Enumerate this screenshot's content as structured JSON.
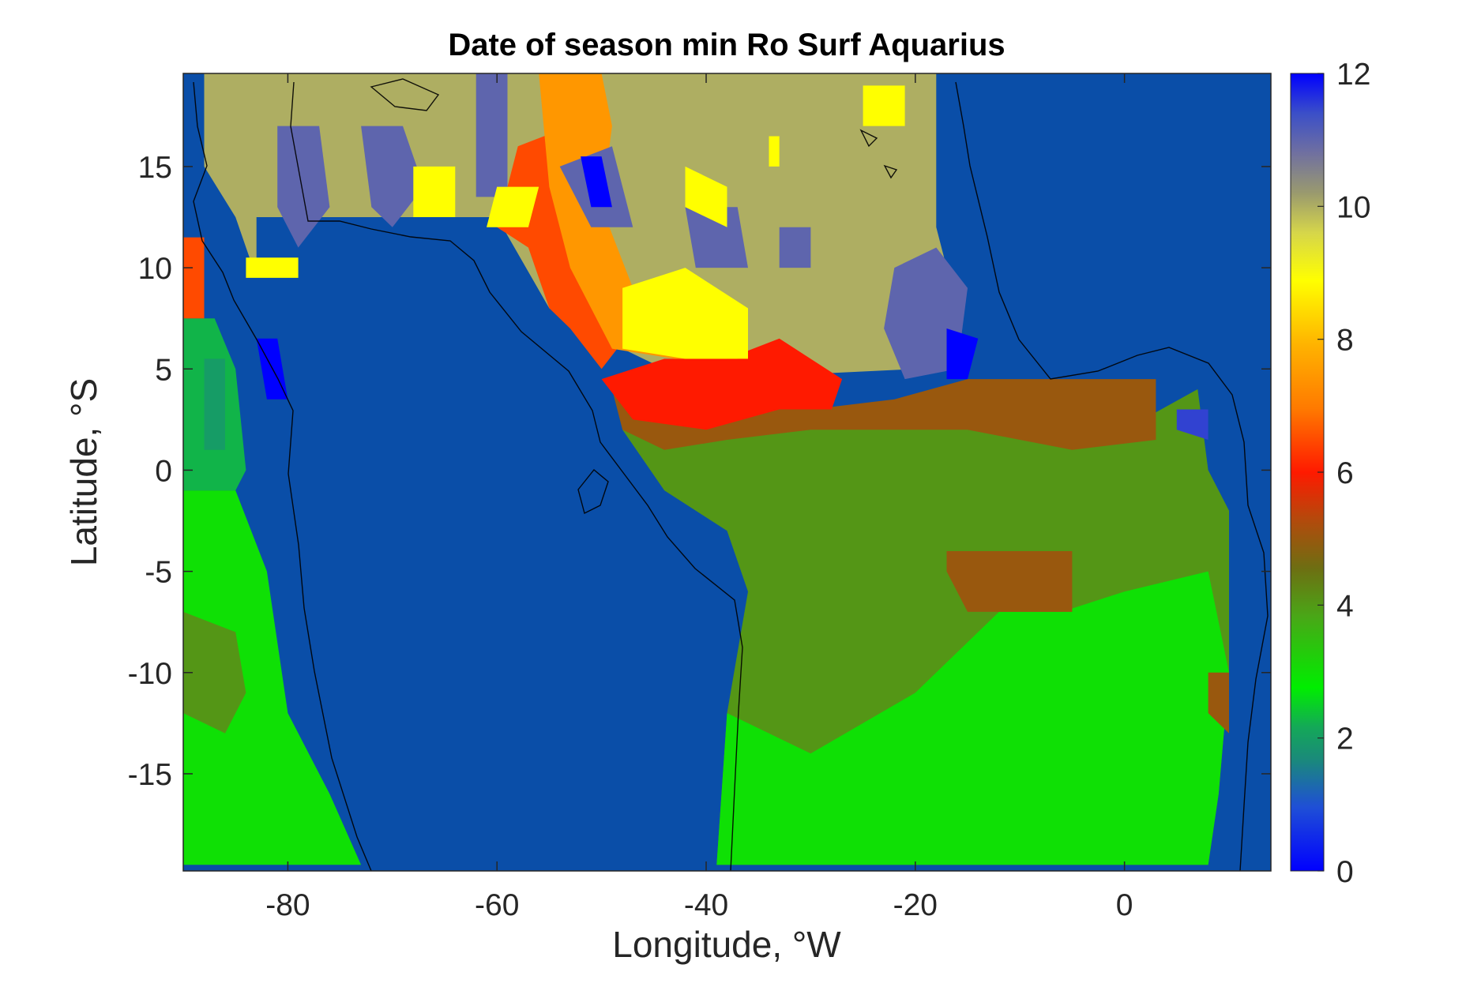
{
  "chart_data": {
    "type": "heatmap",
    "title": "Date of season min Ro Surf Aquarius",
    "xlabel": "Longitude, °W",
    "ylabel": "Latitude, °S",
    "xlim": [
      -90,
      14
    ],
    "ylim": [
      -19.8,
      19.6
    ],
    "xticks": [
      -80,
      -60,
      -40,
      -20,
      0
    ],
    "xtick_labels": [
      "-80",
      "-60",
      "-40",
      "-20",
      "0"
    ],
    "yticks": [
      -15,
      -10,
      -5,
      0,
      5,
      10,
      15
    ],
    "ytick_labels": [
      "-15",
      "-10",
      "-5",
      "0",
      "5",
      "10",
      "15"
    ],
    "colorbar": {
      "range": [
        0,
        12
      ],
      "ticks": [
        0,
        2,
        4,
        6,
        8,
        10,
        12
      ],
      "tick_labels": [
        "0",
        "2",
        "4",
        "6",
        "8",
        "10",
        "12"
      ],
      "colormap": "custom jet-like: blue(0) → teal → green → olive(4) → brown → red(6) → orange(8) → yellow(9) → khaki(10) → slate → blue(12)"
    },
    "background_value": 1,
    "regions": [
      {
        "name": "north-khaki",
        "value": 10,
        "polygon": [
          [
            -88,
            19.6
          ],
          [
            -18,
            19.6
          ],
          [
            -18,
            12
          ],
          [
            -16,
            8
          ],
          [
            -20,
            5
          ],
          [
            -28,
            4.8
          ],
          [
            -36,
            5
          ],
          [
            -44,
            5
          ],
          [
            -48,
            6
          ],
          [
            -55,
            8
          ],
          [
            -60,
            12.5
          ],
          [
            -74,
            12.5
          ],
          [
            -83,
            12.5
          ],
          [
            -83,
            9.5
          ],
          [
            -85,
            12.5
          ],
          [
            -88,
            15
          ]
        ]
      },
      {
        "name": "amazon-olive",
        "value": 4,
        "polygon": [
          [
            -48,
            3.5
          ],
          [
            -30,
            2.5
          ],
          [
            -15,
            2.5
          ],
          [
            0,
            2
          ],
          [
            7,
            4
          ],
          [
            8,
            0
          ],
          [
            10,
            -2
          ],
          [
            10,
            -10
          ],
          [
            9,
            -16
          ],
          [
            8,
            -19.5
          ],
          [
            -39,
            -19.5
          ],
          [
            -38,
            -12
          ],
          [
            -36,
            -6
          ],
          [
            -38,
            -3
          ],
          [
            -44,
            -1
          ],
          [
            -48,
            2
          ]
        ]
      },
      {
        "name": "se-bright-green",
        "value": 3,
        "polygon": [
          [
            -38,
            -12
          ],
          [
            -30,
            -14
          ],
          [
            -20,
            -11
          ],
          [
            -12,
            -7
          ],
          [
            -6,
            -7
          ],
          [
            0,
            -6
          ],
          [
            8,
            -5
          ],
          [
            10,
            -10
          ],
          [
            9,
            -16
          ],
          [
            8,
            -19.5
          ],
          [
            -39,
            -19.5
          ]
        ]
      },
      {
        "name": "sw-bright-green",
        "value": 3,
        "polygon": [
          [
            -90,
            -1
          ],
          [
            -85,
            -1
          ],
          [
            -82,
            -5
          ],
          [
            -80,
            -12
          ],
          [
            -76,
            -16
          ],
          [
            -73,
            -19.5
          ],
          [
            -90,
            -19.5
          ]
        ]
      },
      {
        "name": "w-green-strip",
        "value": 2.3,
        "polygon": [
          [
            -90,
            7.5
          ],
          [
            -87,
            7.5
          ],
          [
            -85,
            5
          ],
          [
            -84,
            0
          ],
          [
            -85,
            -1
          ],
          [
            -90,
            -1
          ]
        ]
      },
      {
        "name": "sw-olive-patch",
        "value": 4,
        "polygon": [
          [
            -90,
            -7
          ],
          [
            -85,
            -8
          ],
          [
            -84,
            -11
          ],
          [
            -86,
            -13
          ],
          [
            -90,
            -12
          ]
        ]
      },
      {
        "name": "brown-band",
        "value": 5,
        "polygon": [
          [
            -49,
            4
          ],
          [
            -40,
            3.5
          ],
          [
            -30,
            3
          ],
          [
            -22,
            3.5
          ],
          [
            -15,
            4.5
          ],
          [
            -8,
            4.5
          ],
          [
            3,
            4.5
          ],
          [
            3,
            1.5
          ],
          [
            -5,
            1
          ],
          [
            -15,
            2
          ],
          [
            -30,
            2
          ],
          [
            -38,
            1.5
          ],
          [
            -44,
            1
          ],
          [
            -48,
            2
          ]
        ]
      },
      {
        "name": "red-band",
        "value": 6,
        "polygon": [
          [
            -50,
            4.5
          ],
          [
            -44,
            5.5
          ],
          [
            -38,
            5.5
          ],
          [
            -33,
            6.5
          ],
          [
            -27,
            4.5
          ],
          [
            -28,
            3
          ],
          [
            -33,
            3
          ],
          [
            -40,
            2
          ],
          [
            -47,
            2.5
          ]
        ]
      },
      {
        "name": "red-orange-diagonal",
        "value": 6.5,
        "polygon": [
          [
            -58,
            16
          ],
          [
            -53,
            17
          ],
          [
            -52,
            13
          ],
          [
            -50,
            10
          ],
          [
            -47,
            7
          ],
          [
            -50,
            5
          ],
          [
            -53,
            7
          ],
          [
            -55,
            8
          ],
          [
            -57,
            11
          ],
          [
            -60,
            12
          ]
        ]
      },
      {
        "name": "orange-diagonal",
        "value": 7.5,
        "polygon": [
          [
            -56,
            19.6
          ],
          [
            -50,
            19.6
          ],
          [
            -49,
            17
          ],
          [
            -50,
            13
          ],
          [
            -47,
            9
          ],
          [
            -42,
            8
          ],
          [
            -38,
            7
          ],
          [
            -37,
            5.5
          ],
          [
            -43,
            5.5
          ],
          [
            -49,
            6
          ],
          [
            -53,
            10
          ],
          [
            -55,
            14
          ]
        ]
      },
      {
        "name": "yellow-diagonal",
        "value": 9,
        "polygon": [
          [
            -48,
            9
          ],
          [
            -42,
            10
          ],
          [
            -36,
            8
          ],
          [
            -36,
            5.5
          ],
          [
            -42,
            5.5
          ],
          [
            -48,
            6
          ]
        ]
      },
      {
        "name": "ne-slate",
        "value": 11,
        "polygon": [
          [
            -22,
            10
          ],
          [
            -18,
            11
          ],
          [
            -15,
            9
          ],
          [
            -16,
            5
          ],
          [
            -21,
            4.5
          ],
          [
            -23,
            7
          ]
        ]
      },
      {
        "name": "nw-slate-1",
        "value": 11,
        "polygon": [
          [
            -81,
            17
          ],
          [
            -77,
            17
          ],
          [
            -76,
            13
          ],
          [
            -79,
            11
          ],
          [
            -81,
            13
          ]
        ]
      },
      {
        "name": "nw-slate-2",
        "value": 11,
        "polygon": [
          [
            -73,
            17
          ],
          [
            -69,
            17
          ],
          [
            -67,
            14
          ],
          [
            -70,
            12
          ],
          [
            -72,
            13
          ]
        ]
      },
      {
        "name": "n-slate-1",
        "value": 11,
        "polygon": [
          [
            -62,
            19.6
          ],
          [
            -59,
            19.6
          ],
          [
            -59,
            13.5
          ],
          [
            -62,
            13.5
          ]
        ]
      },
      {
        "name": "n-slate-2",
        "value": 11,
        "polygon": [
          [
            -54,
            15
          ],
          [
            -49,
            16
          ],
          [
            -47,
            12
          ],
          [
            -51,
            12
          ]
        ]
      },
      {
        "name": "n-slate-3",
        "value": 11,
        "polygon": [
          [
            -42,
            13
          ],
          [
            -37,
            13
          ],
          [
            -36,
            10
          ],
          [
            -41,
            10
          ]
        ]
      },
      {
        "name": "n-slate-4",
        "value": 11,
        "polygon": [
          [
            -33,
            12
          ],
          [
            -30,
            12
          ],
          [
            -30,
            10
          ],
          [
            -33,
            10
          ]
        ]
      },
      {
        "name": "w-blue-patch",
        "value": 12,
        "polygon": [
          [
            -83,
            6.5
          ],
          [
            -81,
            6.5
          ],
          [
            -80,
            3.5
          ],
          [
            -82,
            3.5
          ]
        ]
      },
      {
        "name": "ne-blue-patch",
        "value": 12,
        "polygon": [
          [
            -17,
            7
          ],
          [
            -14,
            6.5
          ],
          [
            -15,
            4.5
          ],
          [
            -17,
            4.5
          ]
        ]
      },
      {
        "name": "n-blue-patch",
        "value": 12,
        "polygon": [
          [
            -52,
            15.5
          ],
          [
            -50,
            15.5
          ],
          [
            -49,
            13
          ],
          [
            -51,
            13
          ]
        ]
      },
      {
        "name": "e-blue-patch",
        "value": 11.5,
        "polygon": [
          [
            5,
            3
          ],
          [
            8,
            3
          ],
          [
            8,
            1.5
          ],
          [
            5,
            2
          ]
        ]
      },
      {
        "name": "nw-yellow-1",
        "value": 9,
        "polygon": [
          [
            -84,
            10.5
          ],
          [
            -79,
            10.5
          ],
          [
            -79,
            9.5
          ],
          [
            -84,
            9.5
          ]
        ]
      },
      {
        "name": "nw-yellow-2",
        "value": 9,
        "polygon": [
          [
            -68,
            15
          ],
          [
            -64,
            15
          ],
          [
            -64,
            12.5
          ],
          [
            -68,
            12.5
          ]
        ]
      },
      {
        "name": "n-yellow-3",
        "value": 9,
        "polygon": [
          [
            -60,
            14
          ],
          [
            -56,
            14
          ],
          [
            -57,
            12
          ],
          [
            -61,
            12
          ]
        ]
      },
      {
        "name": "n-yellow-4",
        "value": 9,
        "polygon": [
          [
            -42,
            15
          ],
          [
            -38,
            14
          ],
          [
            -38,
            12
          ],
          [
            -42,
            13
          ]
        ]
      },
      {
        "name": "n-yellow-5",
        "value": 9,
        "polygon": [
          [
            -25,
            19
          ],
          [
            -21,
            19
          ],
          [
            -21,
            17
          ],
          [
            -25,
            17
          ]
        ]
      },
      {
        "name": "n-yellow-6",
        "value": 9,
        "polygon": [
          [
            -34,
            16.5
          ],
          [
            -33,
            16.5
          ],
          [
            -33,
            15
          ],
          [
            -34,
            15
          ]
        ]
      },
      {
        "name": "w-red-edge",
        "value": 6.5,
        "polygon": [
          [
            -90,
            11.5
          ],
          [
            -88,
            11.5
          ],
          [
            -88,
            7.5
          ],
          [
            -90,
            7.5
          ]
        ]
      },
      {
        "name": "atlantic-brown-patch",
        "value": 5,
        "polygon": [
          [
            -17,
            -4
          ],
          [
            -5,
            -4
          ],
          [
            -5,
            -7
          ],
          [
            -15,
            -7
          ],
          [
            -17,
            -5
          ]
        ]
      },
      {
        "name": "e-brown-patch",
        "value": 5,
        "polygon": [
          [
            8,
            -10
          ],
          [
            10,
            -10
          ],
          [
            10,
            -13
          ],
          [
            8,
            -12
          ]
        ]
      },
      {
        "name": "w-teal-patch",
        "value": 2,
        "polygon": [
          [
            -88,
            5.5
          ],
          [
            -86,
            5.5
          ],
          [
            -86,
            1
          ],
          [
            -88,
            1
          ]
        ]
      }
    ]
  }
}
